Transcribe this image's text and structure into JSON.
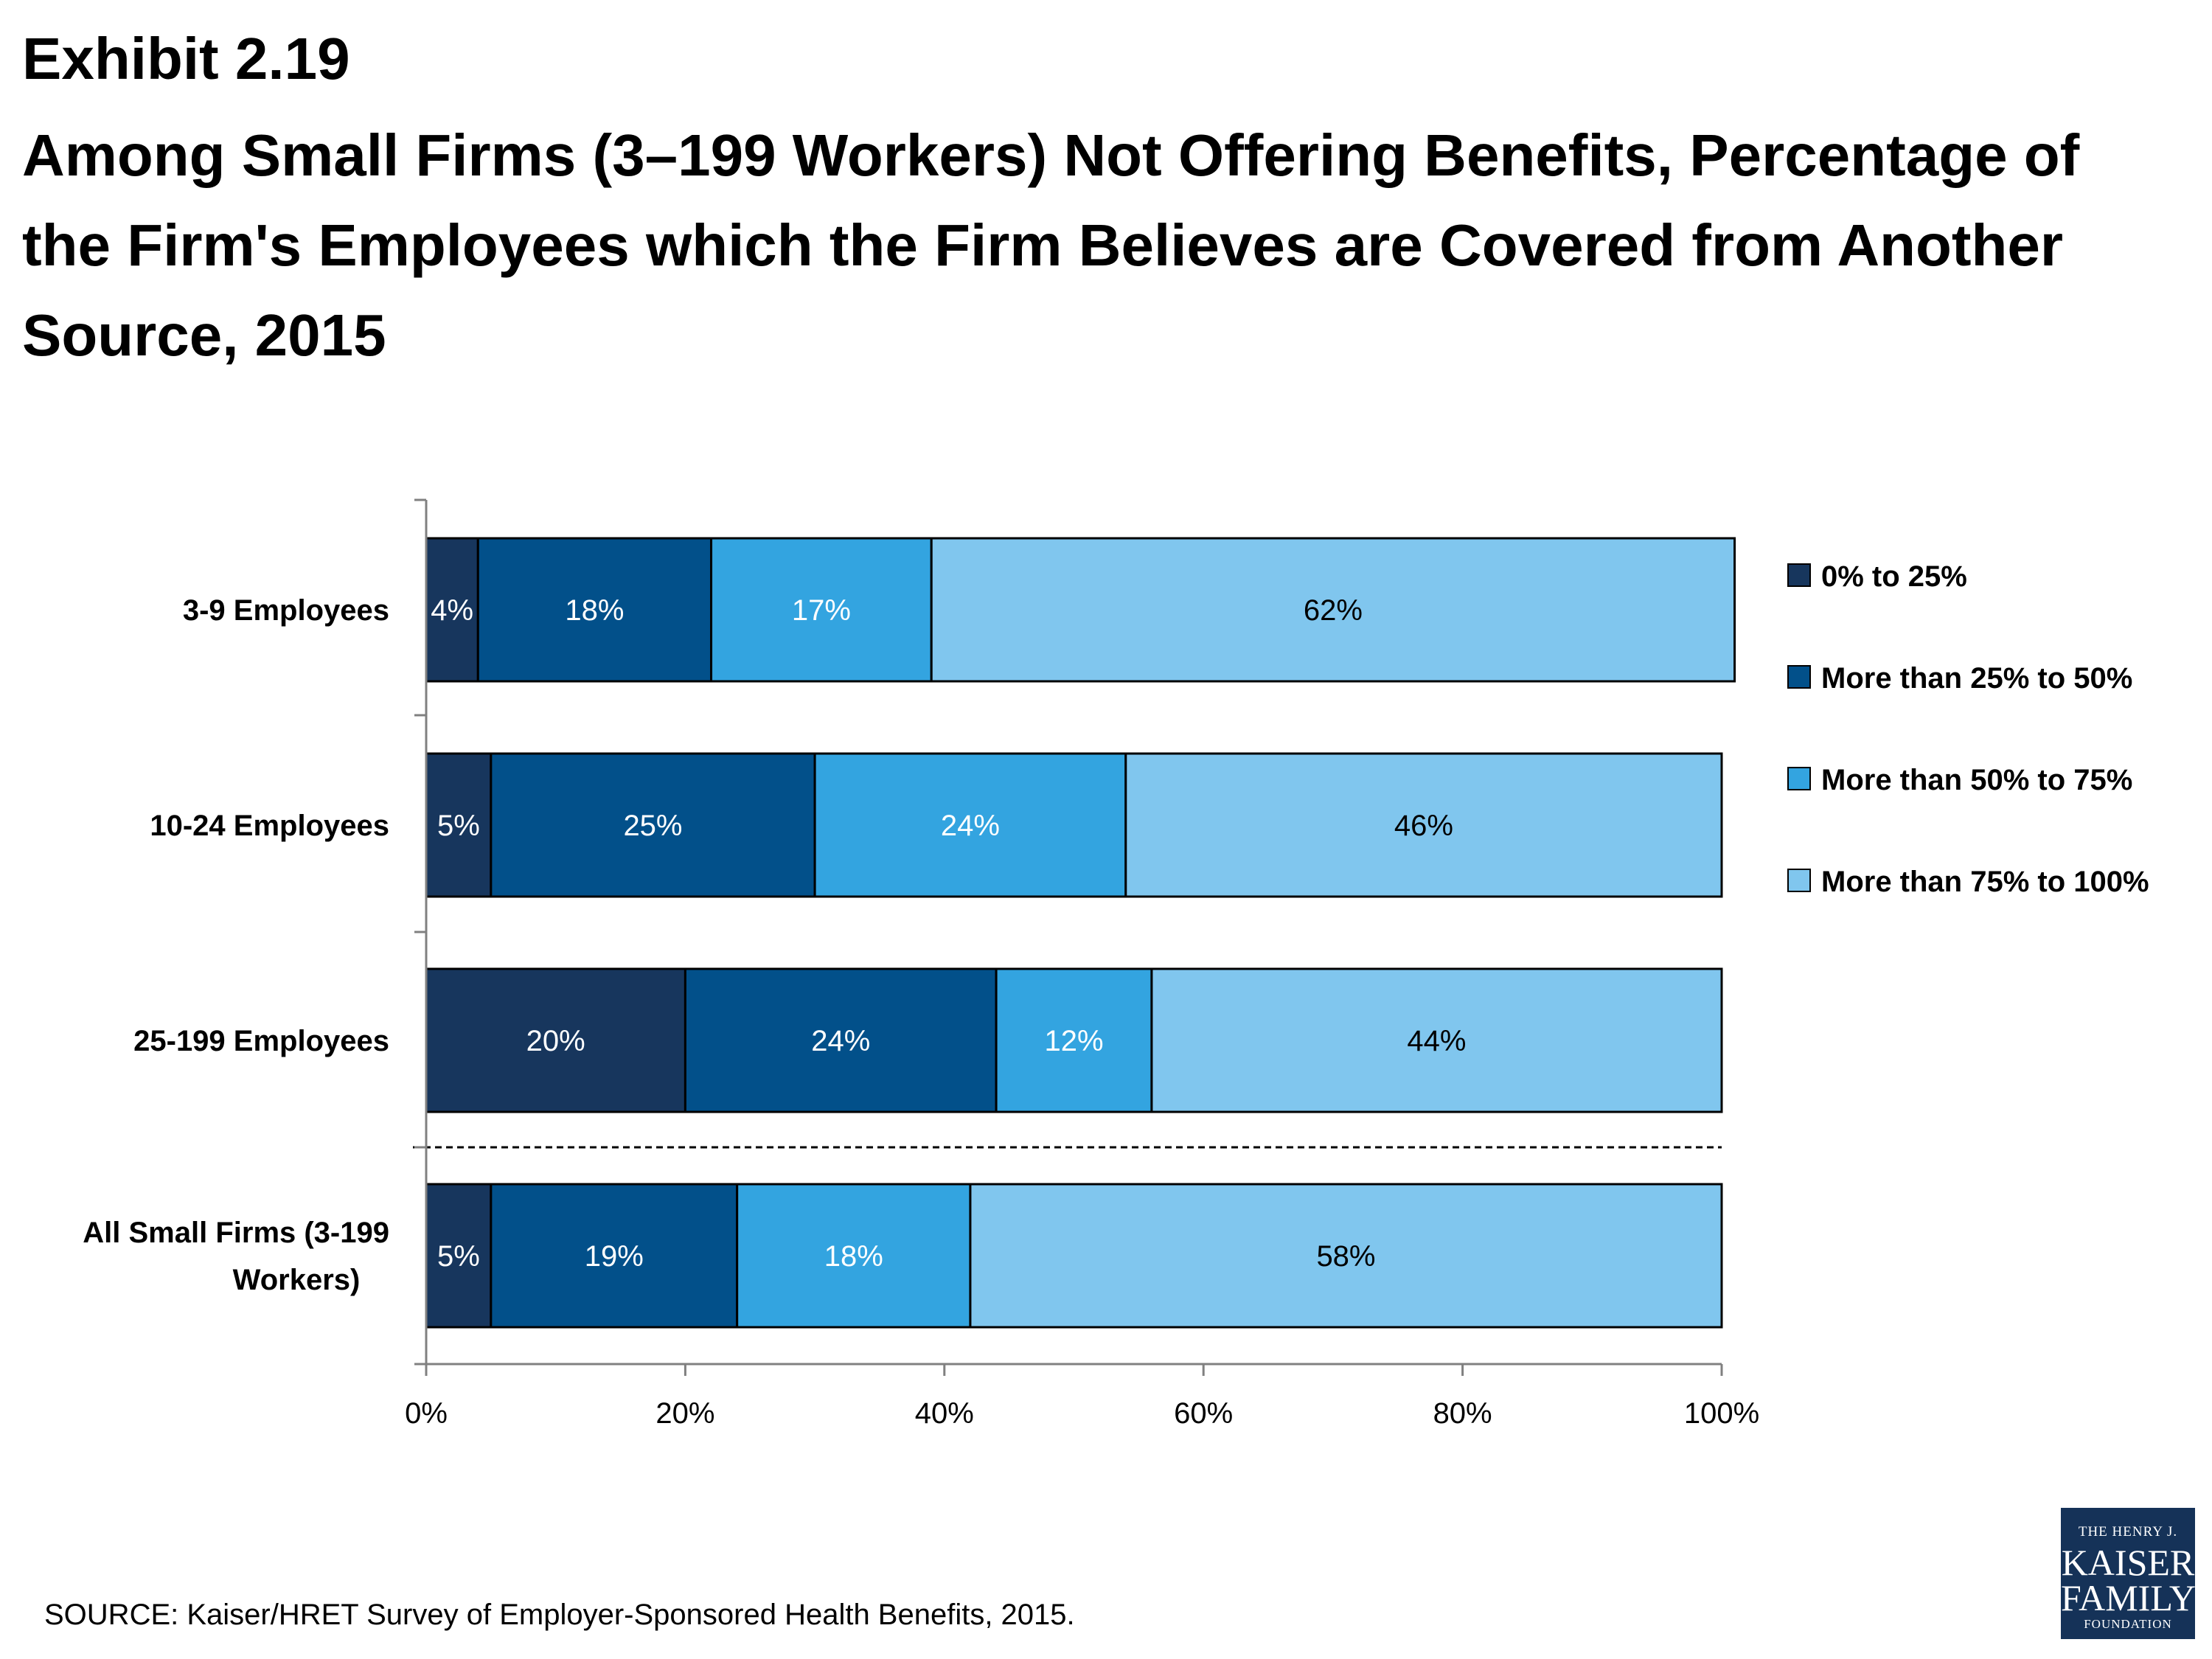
{
  "header": {
    "exhibit": "Exhibit 2.19",
    "title": "Among Small Firms (3–199 Workers) Not Offering Benefits, Percentage of the Firm's Employees which the Firm Believes are Covered from Another Source, 2015"
  },
  "footer": {
    "source": "SOURCE: Kaiser/HRET Survey of Employer-Sponsored Health Benefits, 2015."
  },
  "logo": {
    "line1": "THE HENRY J.",
    "line2": "KAISER",
    "line3": "FAMILY",
    "line4": "FOUNDATION"
  },
  "chart_data": {
    "type": "bar",
    "orientation": "horizontal",
    "stacked": true,
    "categories": [
      "3-9 Employees",
      "10-24 Employees",
      "25-199 Employees",
      "All Small Firms (3-199 Workers)"
    ],
    "series": [
      {
        "name": "0% to 25%",
        "color": "#17365d",
        "values": [
          4,
          5,
          20,
          5
        ],
        "labels": [
          "4%",
          "5%",
          "20%",
          "5%"
        ],
        "label_color": "#ffffff"
      },
      {
        "name": "More than 25% to 50%",
        "color": "#02508a",
        "values": [
          18,
          25,
          24,
          19
        ],
        "labels": [
          "18%",
          "25%",
          "24%",
          "19%"
        ],
        "label_color": "#ffffff"
      },
      {
        "name": "More than 50% to 75%",
        "color": "#33a4e0",
        "values": [
          17,
          24,
          12,
          18
        ],
        "labels": [
          "17%",
          "24%",
          "12%",
          "18%"
        ],
        "label_color": "#ffffff"
      },
      {
        "name": "More than 75% to 100%",
        "color": "#80c6ee",
        "values": [
          62,
          46,
          44,
          58
        ],
        "labels": [
          "62%",
          "46%",
          "44%",
          "58%"
        ],
        "label_color": "#000000"
      }
    ],
    "xlim": [
      0,
      100
    ],
    "x_ticks": [
      0,
      20,
      40,
      60,
      80,
      100
    ],
    "x_tick_labels": [
      "0%",
      "20%",
      "40%",
      "60%",
      "80%",
      "100%"
    ],
    "xlabel": "",
    "ylabel": "",
    "grid": false,
    "legend_position": "right",
    "separator_before_last": true
  }
}
